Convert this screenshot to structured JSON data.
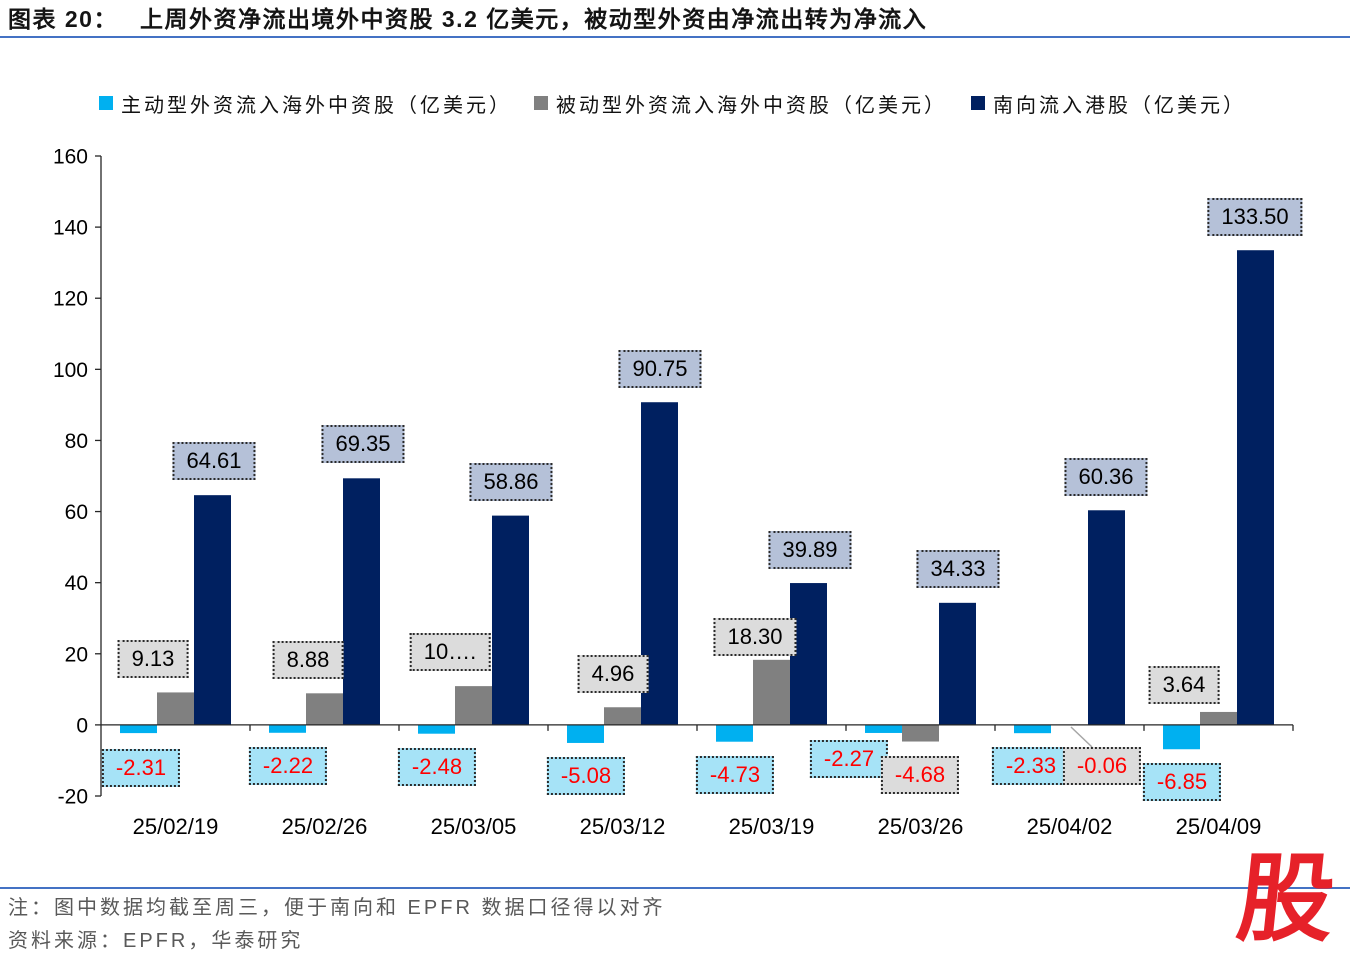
{
  "figure_number": "图表 20：",
  "colors": {
    "axis": "#262626",
    "negative_text": "#FF0000",
    "positive_text": "#000000",
    "rule": "#4472C4",
    "leader": "#A6A6A6",
    "logo": "#E62129"
  },
  "chart_data": {
    "type": "bar",
    "title": "上周外资净流出境外中资股 3.2 亿美元，被动型外资由净流出转为净流入",
    "xlabel": "",
    "ylabel": "",
    "categories": [
      "25/02/19",
      "25/02/26",
      "25/03/05",
      "25/03/12",
      "25/03/19",
      "25/03/26",
      "25/04/02",
      "25/04/09"
    ],
    "series": [
      {
        "name": "主动型外资流入海外中资股（亿美元）",
        "color": "#00B0F0",
        "label_fill": "#A6E3F7",
        "values": [
          -2.31,
          -2.22,
          -2.48,
          -5.08,
          -4.73,
          -2.27,
          -2.33,
          -6.85
        ],
        "labels": [
          "-2.31",
          "-2.22",
          "-2.48",
          "-5.08",
          "-4.73",
          "-2.27",
          "-2.33",
          "-6.85"
        ]
      },
      {
        "name": "被动型外资流入海外中资股（亿美元）",
        "color": "#808080",
        "label_fill": "#DCDCDC",
        "values": [
          9.13,
          8.88,
          10.9,
          4.96,
          18.3,
          -4.68,
          -0.06,
          3.64
        ],
        "labels": [
          "9.13",
          "8.88",
          "10….",
          "4.96",
          "18.30",
          "-4.68",
          "-0.06",
          "3.64"
        ]
      },
      {
        "name": "南向流入港股（亿美元）",
        "color": "#002060",
        "label_fill": "#B5C1D8",
        "values": [
          64.61,
          69.35,
          58.86,
          90.75,
          39.89,
          34.33,
          60.36,
          133.5
        ],
        "labels": [
          "64.61",
          "69.35",
          "58.86",
          "90.75",
          "39.89",
          "34.33",
          "60.36",
          "133.50"
        ]
      }
    ],
    "ylim": [
      -20,
      160
    ],
    "yticks": [
      160,
      140,
      120,
      100,
      80,
      60,
      40,
      20,
      0,
      -20
    ],
    "grid": false,
    "legend": "top"
  },
  "footer": {
    "note": "注：图中数据均截至周三，便于南向和 EPFR 数据口径得以对齐",
    "source": "资料来源：EPFR，华泰研究"
  },
  "logo": {
    "text": "股"
  }
}
